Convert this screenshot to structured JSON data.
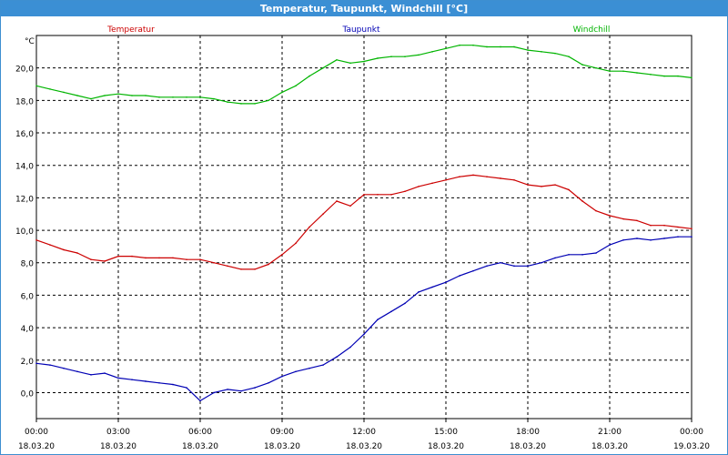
{
  "window": {
    "title": "Temperatur, Taupunkt, Windchill [°C]"
  },
  "chart_data": {
    "type": "line",
    "title": "Temperatur, Taupunkt, Windchill [°C]",
    "ylabel": "°C",
    "ylim": [
      -1.6,
      22.0
    ],
    "xlim": [
      0,
      24
    ],
    "grid": true,
    "legend_placement": "top",
    "yticks": [
      0,
      2,
      4,
      6,
      8,
      10,
      12,
      14,
      16,
      18,
      20
    ],
    "ytick_labels": [
      "0,0",
      "2,0",
      "4,0",
      "6,0",
      "8,0",
      "10,0",
      "12,0",
      "14,0",
      "16,0",
      "18,0",
      "20,0"
    ],
    "xticks": [
      0,
      3,
      6,
      9,
      12,
      15,
      18,
      21,
      24
    ],
    "xtick_labels": [
      {
        "time": "00:00",
        "date": "18.03.20"
      },
      {
        "time": "03:00",
        "date": "18.03.20"
      },
      {
        "time": "06:00",
        "date": "18.03.20"
      },
      {
        "time": "09:00",
        "date": "18.03.20"
      },
      {
        "time": "12:00",
        "date": "18.03.20"
      },
      {
        "time": "15:00",
        "date": "18.03.20"
      },
      {
        "time": "18:00",
        "date": "18.03.20"
      },
      {
        "time": "21:00",
        "date": "18.03.20"
      },
      {
        "time": "00:00",
        "date": "19.03.20"
      }
    ],
    "series": [
      {
        "name": "Temperatur",
        "color": "#cc0000",
        "x": [
          0,
          0.5,
          1,
          1.5,
          2,
          2.5,
          3,
          3.5,
          4,
          4.5,
          5,
          5.5,
          6,
          6.5,
          7,
          7.5,
          8,
          8.5,
          9,
          9.5,
          10,
          10.5,
          11,
          11.5,
          12,
          12.5,
          13,
          13.5,
          14,
          14.5,
          15,
          15.5,
          16,
          16.5,
          17,
          17.5,
          18,
          18.5,
          19,
          19.5,
          20,
          20.5,
          21,
          21.5,
          22,
          22.5,
          23,
          23.5,
          24
        ],
        "values": [
          9.4,
          9.1,
          8.8,
          8.6,
          8.2,
          8.1,
          8.4,
          8.4,
          8.3,
          8.3,
          8.3,
          8.2,
          8.2,
          8.0,
          7.8,
          7.6,
          7.6,
          7.9,
          8.5,
          9.2,
          10.2,
          11.0,
          11.8,
          11.5,
          12.2,
          12.2,
          12.2,
          12.4,
          12.7,
          12.9,
          13.1,
          13.3,
          13.4,
          13.3,
          13.2,
          13.1,
          12.8,
          12.7,
          12.8,
          12.5,
          11.8,
          11.2,
          10.9,
          10.7,
          10.6,
          10.3,
          10.3,
          10.2,
          10.1
        ]
      },
      {
        "name": "Taupunkt",
        "color": "#0000b4",
        "x": [
          0,
          0.5,
          1,
          1.5,
          2,
          2.5,
          3,
          3.5,
          4,
          4.5,
          5,
          5.5,
          6,
          6.5,
          7,
          7.5,
          8,
          8.5,
          9,
          9.5,
          10,
          10.5,
          11,
          11.5,
          12,
          12.5,
          13,
          13.5,
          14,
          14.5,
          15,
          15.5,
          16,
          16.5,
          17,
          17.5,
          18,
          18.5,
          19,
          19.5,
          20,
          20.5,
          21,
          21.5,
          22,
          22.5,
          23,
          23.5,
          24
        ],
        "values": [
          1.8,
          1.7,
          1.5,
          1.3,
          1.1,
          1.2,
          0.9,
          0.8,
          0.7,
          0.6,
          0.5,
          0.3,
          -0.5,
          0.0,
          0.2,
          0.1,
          0.3,
          0.6,
          1.0,
          1.3,
          1.5,
          1.7,
          2.2,
          2.8,
          3.6,
          4.5,
          5.0,
          5.5,
          6.2,
          6.5,
          6.8,
          7.2,
          7.5,
          7.8,
          8.0,
          7.8,
          7.8,
          8.0,
          8.3,
          8.5,
          8.5,
          8.6,
          9.1,
          9.4,
          9.5,
          9.4,
          9.5,
          9.6,
          9.6
        ]
      },
      {
        "name": "Windchill",
        "color": "#00b400",
        "x": [
          0,
          0.5,
          1,
          1.5,
          2,
          2.5,
          3,
          3.5,
          4,
          4.5,
          5,
          5.5,
          6,
          6.5,
          7,
          7.5,
          8,
          8.5,
          9,
          9.5,
          10,
          10.5,
          11,
          11.5,
          12,
          12.5,
          13,
          13.5,
          14,
          14.5,
          15,
          15.5,
          16,
          16.5,
          17,
          17.5,
          18,
          18.5,
          19,
          19.5,
          20,
          20.5,
          21,
          21.5,
          22,
          22.5,
          23,
          23.5,
          24
        ],
        "values": [
          18.9,
          18.7,
          18.5,
          18.3,
          18.1,
          18.3,
          18.4,
          18.3,
          18.3,
          18.2,
          18.2,
          18.2,
          18.2,
          18.1,
          17.9,
          17.8,
          17.8,
          18.0,
          18.5,
          18.9,
          19.5,
          20.0,
          20.5,
          20.3,
          20.4,
          20.6,
          20.7,
          20.7,
          20.8,
          21.0,
          21.2,
          21.4,
          21.4,
          21.3,
          21.3,
          21.3,
          21.1,
          21.0,
          20.9,
          20.7,
          20.2,
          20.0,
          19.8,
          19.8,
          19.7,
          19.6,
          19.5,
          19.5,
          19.4
        ]
      }
    ]
  }
}
